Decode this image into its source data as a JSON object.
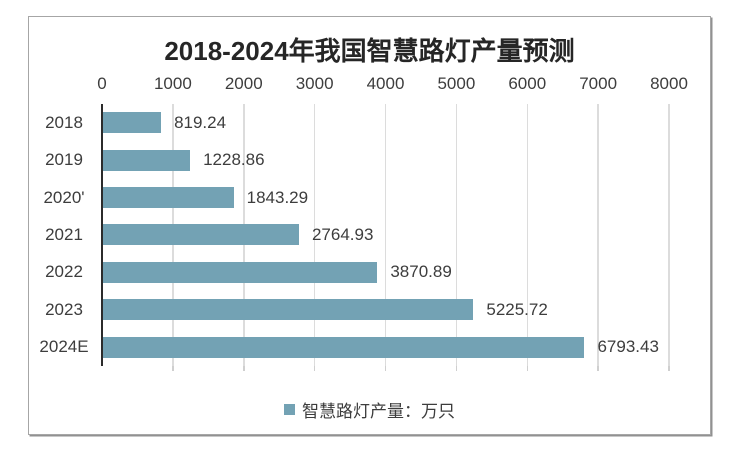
{
  "chart_data": {
    "type": "bar",
    "orientation": "horizontal",
    "title": "2018-2024年我国智慧路灯产量预测",
    "categories": [
      "2018",
      "2019",
      "2020'",
      "2021",
      "2022",
      "2023",
      "2024E"
    ],
    "values": [
      819.24,
      1228.86,
      1843.29,
      2764.93,
      3870.89,
      5225.72,
      6793.43
    ],
    "value_decimals": 2,
    "x_ticks": [
      0,
      1000,
      2000,
      3000,
      4000,
      5000,
      6000,
      7000,
      8000
    ],
    "xlim": [
      0,
      8000
    ],
    "xlabel": "",
    "ylabel": "",
    "grid": true,
    "legend_label": "智慧路灯产量：万只",
    "legend_position": "bottom-center",
    "colors": {
      "bar": "#73a2b4",
      "title": "#262626",
      "label": "#3d3d3d",
      "grid": "#dcdcdc",
      "axis": "#2b2b2b",
      "border": "#a6a6a6",
      "background": "#ffffff"
    }
  }
}
